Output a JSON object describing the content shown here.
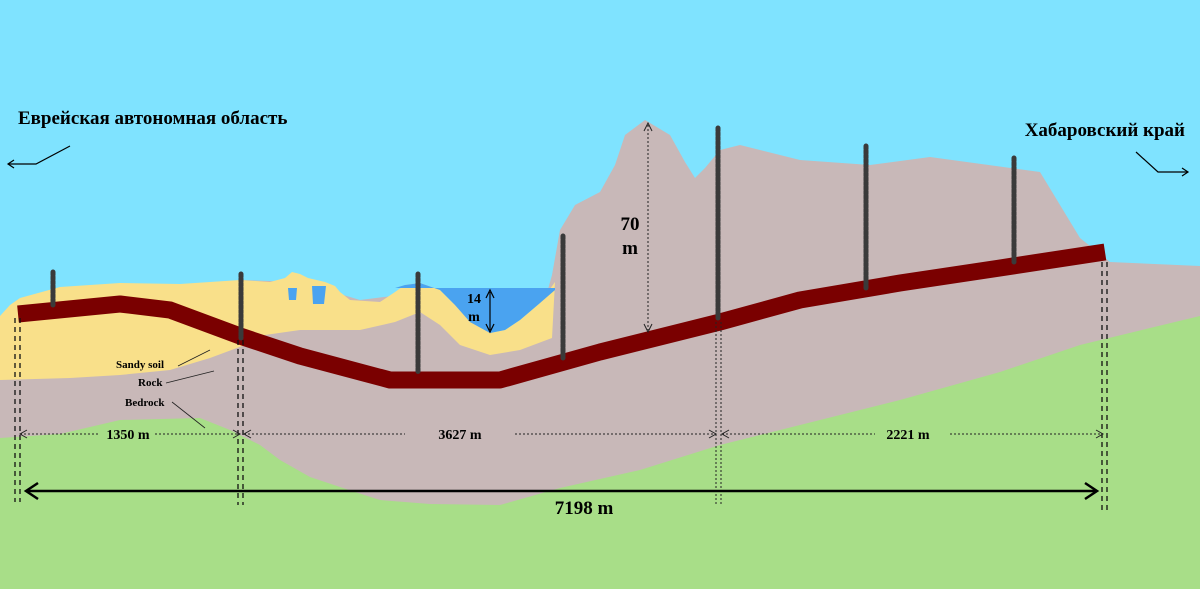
{
  "regions": {
    "left": "Еврейская автономная область",
    "right": "Хабаровский край"
  },
  "depths": {
    "water_value": "14",
    "water_unit": "m",
    "hill_value": "70",
    "hill_unit": "m"
  },
  "layers": {
    "sandy_soil": "Sandy soil",
    "rock": "Rock",
    "bedrock": "Bedrock"
  },
  "segments": [
    "1350 m",
    "3627 m",
    "2221 m"
  ],
  "total_length": "7198 m",
  "colors": {
    "sky": "#7fe3ff",
    "water": "#4aa3f0",
    "sand": "#f9e08a",
    "rock": "#c8b8b8",
    "bedrock": "#a8de88",
    "tunnel": "#7a0000",
    "pile": "#3a3a3a"
  }
}
